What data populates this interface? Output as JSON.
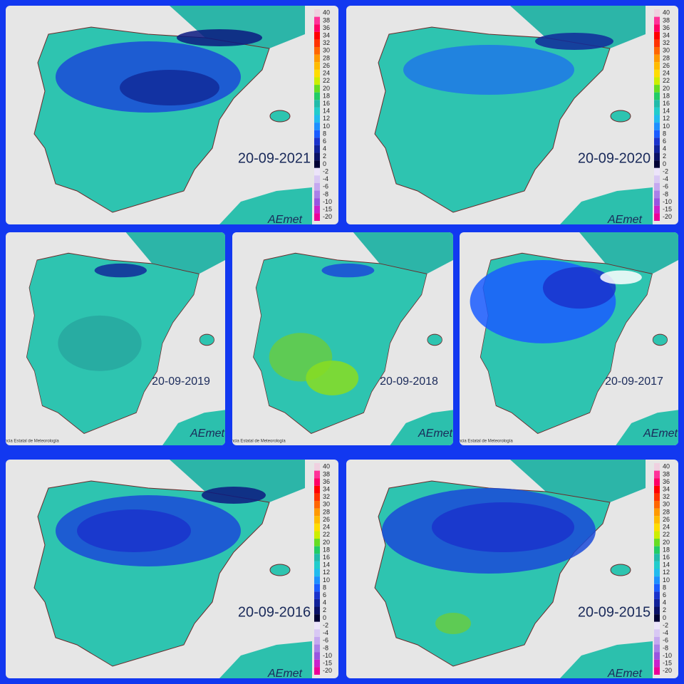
{
  "panels": [
    {
      "date": "20-09-2021"
    },
    {
      "date": "20-09-2020"
    },
    {
      "date": "20-09-2019"
    },
    {
      "date": "20-09-2018"
    },
    {
      "date": "20-09-2017"
    },
    {
      "date": "20-09-2016"
    },
    {
      "date": "20-09-2015"
    }
  ],
  "legend": {
    "values": [
      40,
      38,
      36,
      34,
      32,
      30,
      28,
      26,
      24,
      22,
      20,
      18,
      16,
      14,
      12,
      10,
      8,
      6,
      4,
      2,
      0,
      -2,
      -4,
      -6,
      -8,
      -10,
      -15,
      -20
    ],
    "colors": [
      "#f0d0e0",
      "#ff3399",
      "#ff0066",
      "#ff0000",
      "#ff3300",
      "#ff6600",
      "#ff9900",
      "#ffbb00",
      "#ffdd00",
      "#ccee00",
      "#66dd22",
      "#22cc66",
      "#22bbaa",
      "#22cccc",
      "#22bbee",
      "#1e90ff",
      "#1a5cff",
      "#1a33cc",
      "#112299",
      "#0a1166",
      "#000033",
      "#ece4fa",
      "#d8c8f4",
      "#c4a8f0",
      "#aa80e8",
      "#9955e0",
      "#cc22cc",
      "#ee0099"
    ]
  },
  "logo": "AEmet",
  "agency": "Agencia Estatal de Meteorología"
}
